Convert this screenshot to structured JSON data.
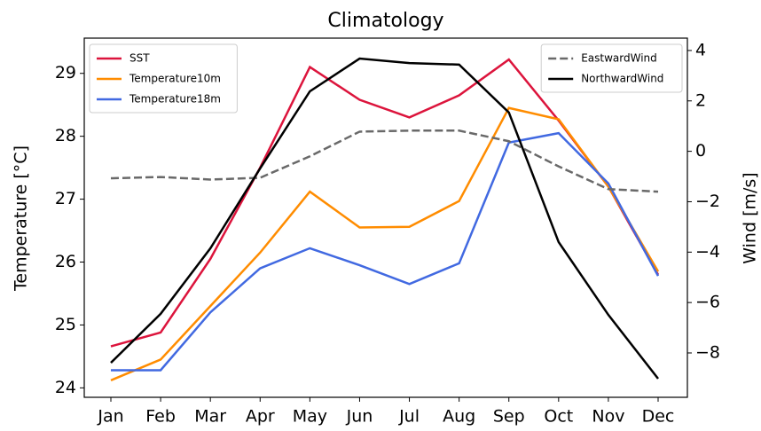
{
  "chart_data": {
    "type": "line",
    "title": "Climatology",
    "categories": [
      "Jan",
      "Feb",
      "Mar",
      "Apr",
      "May",
      "Jun",
      "Jul",
      "Aug",
      "Sep",
      "Oct",
      "Nov",
      "Dec"
    ],
    "ylabel": "Temperature [°C]",
    "y2label": "Wind [m/s]",
    "ylim": [
      23.85,
      29.56
    ],
    "yticks": [
      24,
      25,
      26,
      27,
      28,
      29
    ],
    "y2lim": [
      -9.76,
      4.49
    ],
    "y2ticks": [
      {
        "value": -8,
        "label": "−8"
      },
      {
        "value": -6,
        "label": "−6"
      },
      {
        "value": -4,
        "label": "−4"
      },
      {
        "value": -2,
        "label": "−2"
      },
      0,
      2,
      4
    ],
    "grid": false,
    "legend_loc": "upper left",
    "legend2_loc": "upper right",
    "series": [
      {
        "name": "SST",
        "color": "#dc143c",
        "values": [
          24.66,
          24.88,
          26.05,
          27.5,
          29.1,
          28.58,
          28.3,
          28.65,
          29.22,
          28.25,
          27.2,
          25.8
        ]
      },
      {
        "name": "Temperature10m",
        "color": "#ff8c00",
        "values": [
          24.12,
          24.45,
          25.3,
          26.15,
          27.12,
          26.55,
          26.56,
          26.97,
          28.45,
          28.27,
          27.2,
          25.85
        ]
      },
      {
        "name": "Temperature18m",
        "color": "#4169e1",
        "values": [
          24.28,
          24.28,
          25.2,
          25.9,
          26.22,
          25.95,
          25.65,
          25.98,
          27.9,
          28.05,
          27.25,
          25.78
        ]
      },
      {
        "name": "EastwardWind",
        "color": "#696969",
        "dash": "dashed",
        "axis": "y2",
        "values": [
          -1.07,
          -1.02,
          -1.12,
          -1.05,
          -0.2,
          0.78,
          0.82,
          0.82,
          0.4,
          -0.6,
          -1.5,
          -1.6
        ]
      },
      {
        "name": "NorthwardWind",
        "color": "#000000",
        "axis": "y2",
        "values": [
          -8.39,
          -6.45,
          -3.85,
          -0.68,
          2.38,
          3.68,
          3.5,
          3.44,
          1.54,
          -3.6,
          -6.49,
          -9.02
        ]
      }
    ]
  }
}
